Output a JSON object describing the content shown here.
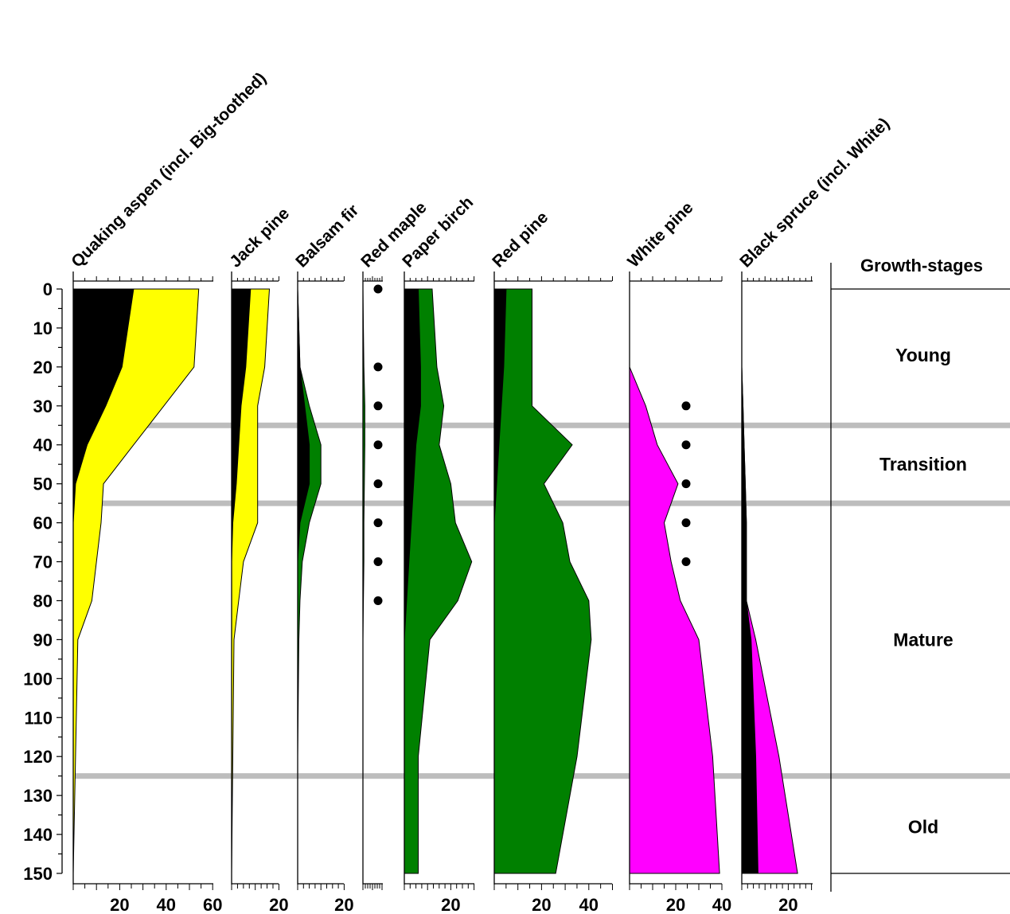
{
  "chart_data": {
    "type": "area",
    "y_axis": {
      "range": [
        0,
        150
      ],
      "ticks": [
        0,
        10,
        20,
        30,
        40,
        50,
        60,
        70,
        80,
        90,
        100,
        110,
        120,
        130,
        140,
        150
      ],
      "inverted": true
    },
    "ages": [
      0,
      20,
      30,
      40,
      50,
      60,
      70,
      80,
      90,
      120,
      150
    ],
    "stage_boundaries": [
      35,
      55,
      125
    ],
    "stages_title": "Growth-stages",
    "stages": [
      {
        "label": "Young",
        "y": 17
      },
      {
        "label": "Transition",
        "y": 45
      },
      {
        "label": "Mature",
        "y": 90
      },
      {
        "label": "Old",
        "y": 138
      }
    ],
    "series": [
      {
        "name": "Quaking aspen (incl. Big-toothed)",
        "fill": "#ffff00",
        "xmax": 60,
        "tick_labels": [
          20,
          40,
          60
        ],
        "outer": [
          54,
          52,
          39,
          26,
          13,
          12,
          10,
          8,
          2,
          1,
          0
        ],
        "inner": [
          26,
          21,
          14,
          6,
          1,
          0,
          0,
          0,
          0,
          0,
          0
        ]
      },
      {
        "name": "Jack pine",
        "fill": "#ffff00",
        "xmax": 20,
        "tick_labels": [
          20
        ],
        "outer": [
          16,
          14,
          11,
          11,
          11,
          11,
          5,
          3,
          1,
          0.5,
          0
        ],
        "inner": [
          8,
          6,
          4,
          3,
          2,
          0.5,
          0,
          0,
          0,
          0,
          0
        ]
      },
      {
        "name": "Balsam fir",
        "fill": "#008000",
        "xmax": 20,
        "tick_labels": [
          20
        ],
        "outer": [
          0,
          1,
          5,
          10,
          10,
          5,
          2,
          1,
          0.5,
          0,
          0
        ],
        "inner": [
          0,
          1,
          3,
          5,
          5,
          1,
          0,
          0,
          0,
          0,
          0
        ]
      },
      {
        "name": "Red maple",
        "fill": "#008000",
        "xmax": 20,
        "tick_labels": [],
        "dots": [
          0,
          20,
          30,
          40,
          50,
          60,
          70,
          80
        ],
        "outer": [
          0,
          1,
          2,
          2,
          1.5,
          1,
          1,
          0.5,
          0,
          0,
          0
        ],
        "inner": [
          0,
          0,
          0,
          0,
          0,
          0,
          0,
          0,
          0,
          0,
          0
        ]
      },
      {
        "name": "Paper birch",
        "fill": "#008000",
        "xmax": 20,
        "tick_labels": [
          20
        ],
        "outer": [
          12,
          14,
          17,
          15,
          20,
          22,
          29,
          23,
          11,
          6,
          6
        ],
        "inner": [
          6,
          7,
          7,
          5,
          4,
          3,
          2,
          1,
          0,
          0,
          0
        ]
      },
      {
        "name": "Red pine",
        "fill": "#008000",
        "xmax": 40,
        "tick_labels": [
          20,
          40
        ],
        "outer": [
          16,
          16,
          16,
          33,
          21,
          29,
          32,
          40,
          41,
          35,
          26
        ],
        "inner": [
          5,
          4,
          3,
          2,
          1,
          0,
          0,
          0,
          0,
          0,
          0
        ]
      },
      {
        "name": "White pine",
        "fill": "#ff00ff",
        "xmax": 40,
        "tick_labels": [
          20,
          40
        ],
        "dots": [
          30,
          40,
          50,
          60,
          70
        ],
        "outer": [
          0,
          0,
          7,
          12,
          21,
          15,
          18,
          22,
          30,
          36,
          39
        ],
        "inner": [
          0,
          0,
          0,
          0,
          0,
          0,
          0,
          0,
          0,
          0,
          0
        ]
      },
      {
        "name": "Black spruce (incl. White)",
        "fill": "#ff00ff",
        "xmax": 20,
        "tick_labels": [
          20
        ],
        "outer": [
          0,
          0,
          0.5,
          1,
          1.5,
          2,
          2,
          2,
          6,
          16,
          24
        ],
        "inner": [
          0,
          0,
          0.5,
          1,
          1.5,
          2,
          2,
          2,
          4,
          6,
          7
        ]
      }
    ]
  }
}
